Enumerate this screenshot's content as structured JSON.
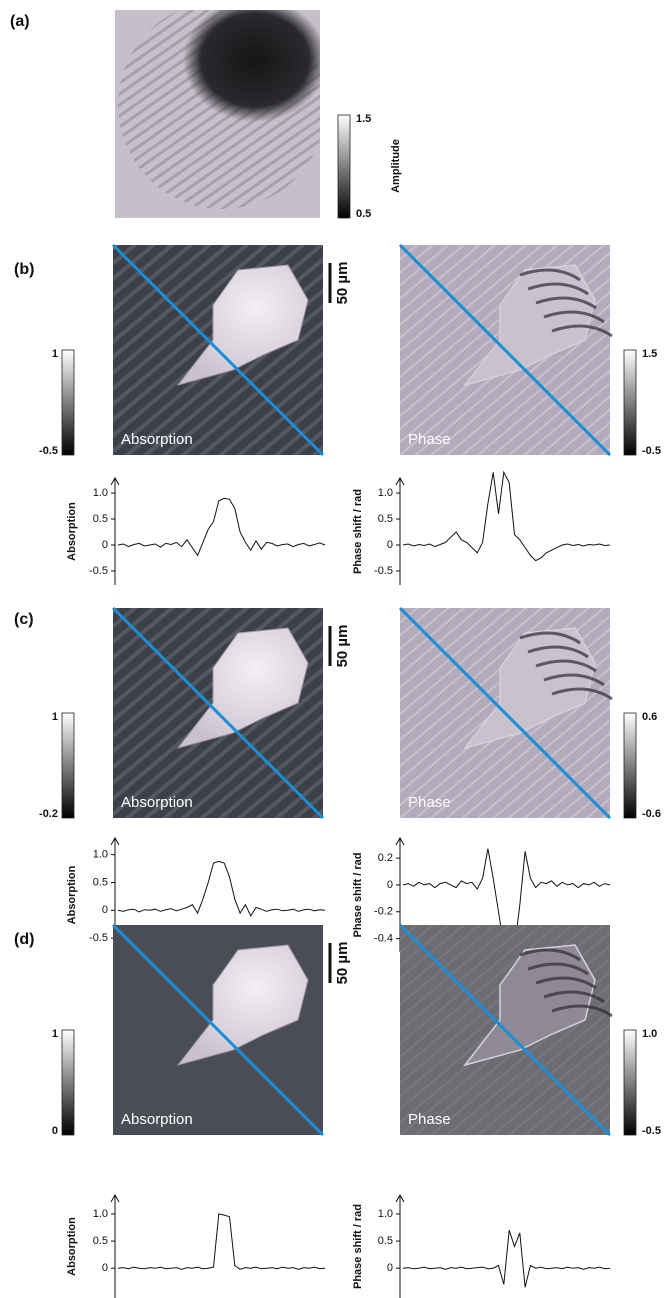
{
  "panel_a": {
    "label": "(a)",
    "colorbar": {
      "max": 1.5,
      "min": 0.5,
      "title": "Amplitude"
    }
  },
  "panels": [
    {
      "label": "(b)",
      "scale_bar": "50 µm",
      "absorption": {
        "image_label": "Absorption",
        "colorbar": {
          "max": 1,
          "min": -0.5
        },
        "profile": {
          "ylabel": "Absorption",
          "ylim": [
            -0.77,
            1.29
          ],
          "yticks": [
            {
              "value": 1,
              "label": "1.0"
            },
            0.5,
            0,
            -0.5
          ],
          "values": [
            0,
            0.02,
            -0.03,
            0.01,
            0.03,
            -0.02,
            0,
            0.02,
            -0.04,
            0.03,
            0.01,
            0.05,
            -0.03,
            0.1,
            -0.05,
            -0.2,
            0.05,
            0.3,
            0.45,
            0.85,
            0.9,
            0.88,
            0.7,
            0.25,
            0.05,
            -0.1,
            0.08,
            -0.08,
            0.05,
            0.03,
            -0.02,
            0.01,
            0.02,
            -0.03,
            0.01,
            0.03,
            -0.02,
            0.01,
            0.04,
            0
          ]
        }
      },
      "phase": {
        "image_label": "Phase",
        "colorbar": {
          "max": 1.5,
          "min": -0.5
        },
        "profile": {
          "ylabel": "Phase shift  / rad",
          "ylim": [
            -0.77,
            1.29
          ],
          "yticks": [
            {
              "value": 1,
              "label": "1.0"
            },
            0.5,
            0,
            -0.5
          ],
          "values": [
            0,
            0.02,
            -0.02,
            0.01,
            -0.01,
            0.02,
            -0.03,
            0.01,
            0.05,
            0.15,
            0.25,
            0.1,
            0.05,
            -0.05,
            -0.15,
            0.05,
            0.8,
            1.4,
            0.6,
            1.4,
            1.2,
            0.2,
            0.1,
            -0.05,
            -0.2,
            -0.3,
            -0.25,
            -0.15,
            -0.1,
            -0.05,
            0,
            0.02,
            -0.01,
            0.01,
            -0.02,
            0.01,
            0,
            0.02,
            -0.01,
            0
          ]
        }
      }
    },
    {
      "label": "(c)",
      "scale_bar": "50 µm",
      "absorption": {
        "image_label": "Absorption",
        "colorbar": {
          "max": 1,
          "min": -0.2
        },
        "profile": {
          "ylabel": "Absorption",
          "ylim": [
            -0.75,
            1.3
          ],
          "yticks": [
            {
              "value": 1,
              "label": "1.0"
            },
            0.5,
            0,
            -0.5
          ],
          "values": [
            0,
            -0.02,
            0.01,
            0.02,
            -0.03,
            0.01,
            0,
            0.02,
            -0.02,
            0.01,
            0.03,
            -0.01,
            0.02,
            0.05,
            0.1,
            -0.05,
            0.2,
            0.5,
            0.85,
            0.88,
            0.85,
            0.6,
            0.2,
            -0.05,
            0.1,
            -0.1,
            0.05,
            0.02,
            -0.02,
            0.01,
            0.02,
            -0.01,
            0,
            0.02,
            -0.02,
            0.01,
            0.02,
            -0.01,
            0.01,
            0
          ]
        }
      },
      "phase": {
        "image_label": "Phase",
        "colorbar": {
          "max": 0.6,
          "min": -0.6
        },
        "profile": {
          "ylabel": "Phase shift  / rad",
          "ylim": [
            -0.5,
            0.35
          ],
          "yticks": [
            0.2,
            0,
            -0.2,
            -0.4
          ],
          "values": [
            0,
            0.01,
            -0.01,
            0.02,
            0,
            0.01,
            -0.02,
            0.01,
            0.02,
            0,
            -0.02,
            0.03,
            0.01,
            0.02,
            -0.03,
            0.05,
            0.27,
            0.05,
            -0.2,
            -0.45,
            -0.3,
            -0.47,
            -0.15,
            0.25,
            0.05,
            -0.02,
            0.02,
            0.01,
            0.03,
            -0.01,
            0.02,
            0,
            0.01,
            -0.02,
            0.01,
            0,
            0.02,
            -0.01,
            0.01,
            0
          ]
        }
      }
    },
    {
      "label": "(d)",
      "scale_bar": "50 µm",
      "absorption": {
        "image_label": "Absorption",
        "colorbar": {
          "max": 1,
          "min": 0
        },
        "profile": {
          "ylabel": "Absorption",
          "ylim": [
            -0.55,
            1.35
          ],
          "yticks": [
            {
              "value": 1,
              "label": "1.0"
            },
            0.5,
            0
          ],
          "values": [
            0,
            0.01,
            -0.01,
            0.02,
            0,
            -0.01,
            0.01,
            0,
            0.02,
            -0.01,
            0,
            0.01,
            -0.02,
            0.01,
            0,
            0.02,
            -0.01,
            0,
            0.02,
            1.0,
            0.98,
            0.95,
            0.05,
            -0.02,
            0.01,
            0,
            0.02,
            -0.01,
            0,
            0.01,
            -0.01,
            0.02,
            0,
            0.01,
            -0.02,
            0.01,
            0,
            0.02,
            -0.01,
            0
          ]
        }
      },
      "phase": {
        "image_label": "Phase",
        "colorbar": {
          "max": {
            "value": 1,
            "label": "1.0"
          },
          "min": -0.5
        },
        "profile": {
          "ylabel": "Phase shift  / rad",
          "ylim": [
            -0.55,
            1.35
          ],
          "yticks": [
            {
              "value": 1,
              "label": "1.0"
            },
            0.5,
            0
          ],
          "values": [
            0,
            0.01,
            -0.01,
            0,
            0.02,
            -0.01,
            0,
            0.01,
            -0.02,
            0.01,
            0,
            0.02,
            -0.01,
            0,
            0.01,
            0.02,
            -0.01,
            0,
            0.05,
            -0.3,
            0.7,
            0.4,
            0.65,
            -0.35,
            0.05,
            0,
            0.02,
            -0.01,
            0,
            0.01,
            -0.01,
            0.02,
            0,
            0.01,
            -0.02,
            0.01,
            0,
            0.02,
            -0.01,
            0
          ]
        }
      }
    }
  ]
}
